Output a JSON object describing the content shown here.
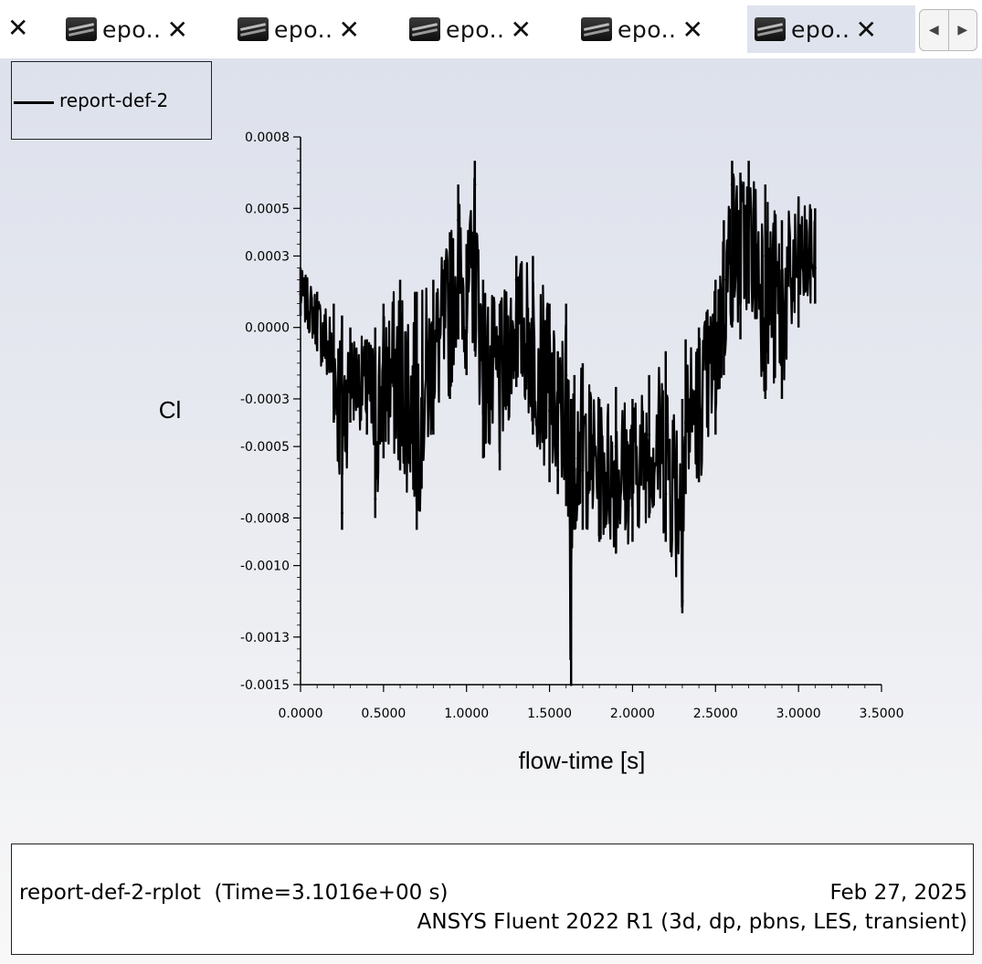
{
  "tabs": [
    {
      "label": "epo..",
      "close": "✕"
    },
    {
      "label": "epo..",
      "close": "✕"
    },
    {
      "label": "epo..",
      "close": "✕"
    },
    {
      "label": "epo..",
      "close": "✕"
    },
    {
      "label": "epo..",
      "close": "✕"
    }
  ],
  "leading_close": "✕",
  "scroll": {
    "left": "◀",
    "right": "▶"
  },
  "legend": {
    "label": "report-def-2"
  },
  "info": {
    "title": "report-def-2-rplot",
    "time": "(Time=3.1016e+00 s)",
    "date": "Feb 27, 2025",
    "software": "ANSYS Fluent 2022 R1 (3d, dp, pbns, LES, transient)"
  },
  "chart_data": {
    "type": "line",
    "xlabel": "flow-time [s]",
    "ylabel": "Cl",
    "xlim": [
      0,
      3.5
    ],
    "ylim": [
      -0.0015,
      0.0008
    ],
    "x_ticks": [
      0,
      0.5,
      1.0,
      1.5,
      2.0,
      2.5,
      3.0,
      3.5
    ],
    "x_tick_labels": [
      "0.0000",
      "0.5000",
      "1.0000",
      "1.5000",
      "2.0000",
      "2.5000",
      "3.0000",
      "3.5000"
    ],
    "y_ticks": [
      0.0008,
      0.0005,
      0.0003,
      0.0,
      -0.0003,
      -0.0005,
      -0.0008,
      -0.001,
      -0.0013,
      -0.0015
    ],
    "y_tick_labels": [
      "0.0008",
      "0.0005",
      "0.0003",
      "0.0000",
      "-0.0003",
      "-0.0005",
      "-0.0008",
      "-0.0010",
      "-0.0013",
      "-0.0015"
    ],
    "series": [
      {
        "name": "report-def-2",
        "color": "#000000",
        "x": [
          0.0,
          0.1,
          0.2,
          0.25,
          0.3,
          0.4,
          0.45,
          0.5,
          0.6,
          0.7,
          0.8,
          0.9,
          0.95,
          1.0,
          1.05,
          1.1,
          1.2,
          1.3,
          1.4,
          1.5,
          1.55,
          1.6,
          1.63,
          1.65,
          1.7,
          1.8,
          1.9,
          2.0,
          2.1,
          2.2,
          2.3,
          2.32,
          2.4,
          2.5,
          2.55,
          2.6,
          2.65,
          2.7,
          2.8,
          2.9,
          3.0,
          3.1
        ],
        "y": [
          0.00014,
          -5e-05,
          -0.00015,
          -0.00078,
          -0.0002,
          -0.0003,
          -0.00072,
          -0.0004,
          -0.00035,
          -0.0006,
          -0.0001,
          0.00015,
          0.00045,
          0.0,
          0.0006,
          -0.0001,
          -0.0004,
          0.0002,
          -0.0002,
          -0.00035,
          -0.0006,
          -0.0002,
          -0.0015,
          -0.00055,
          -0.0006,
          -0.0007,
          -0.0005,
          -0.0006,
          -0.00045,
          -0.0007,
          -0.00115,
          -0.0004,
          -0.0003,
          -0.0001,
          0.0002,
          0.0006,
          0.0003,
          0.0005,
          0.0003,
          0.0001,
          0.0003,
          0.00025
        ],
        "envelope_high": [
          0.00025,
          0.00015,
          0.0001,
          5e-05,
          0.0,
          -5e-05,
          0.0,
          0.0001,
          0.0002,
          0.00015,
          0.0002,
          0.0004,
          0.0006,
          0.00035,
          0.0007,
          0.0002,
          0.0001,
          0.0003,
          0.0003,
          0.0001,
          -0.0001,
          0.0001,
          -0.0003,
          -0.0002,
          -0.00015,
          -0.0003,
          -0.00025,
          -0.0003,
          -0.0002,
          -0.0001,
          -0.0003,
          -5e-05,
          0.0,
          0.0002,
          0.00045,
          0.0007,
          0.00065,
          0.0007,
          0.0006,
          0.00045,
          0.00055,
          0.0005
        ],
        "envelope_low": [
          5e-05,
          -0.0001,
          -0.0004,
          -0.00085,
          -0.0004,
          -0.00045,
          -0.0008,
          -0.00055,
          -0.0006,
          -0.00085,
          -0.00045,
          -0.0003,
          -5e-05,
          -0.0002,
          -0.0001,
          -0.00055,
          -0.0006,
          -0.00025,
          -0.00045,
          -0.00065,
          -0.0007,
          -0.00075,
          -0.0015,
          -0.00085,
          -0.00085,
          -0.0009,
          -0.00095,
          -0.0009,
          -0.0008,
          -0.0009,
          -0.0012,
          -0.0007,
          -0.00065,
          -0.00045,
          -0.0002,
          0.0,
          -5e-05,
          0.0001,
          -0.0003,
          -0.0003,
          0.0,
          0.0001
        ]
      }
    ],
    "grid": false,
    "legend_position": "top-left"
  }
}
